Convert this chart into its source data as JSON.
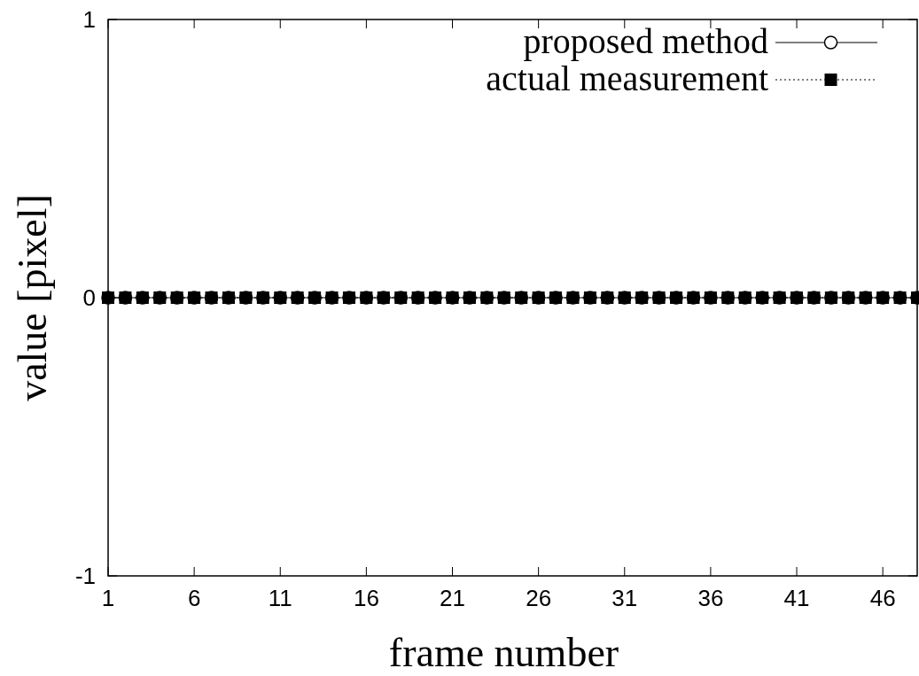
{
  "chart_data": {
    "type": "line",
    "xlabel": "frame number",
    "ylabel": "value [pixel]",
    "x": [
      1,
      2,
      3,
      4,
      5,
      6,
      7,
      8,
      9,
      10,
      11,
      12,
      13,
      14,
      15,
      16,
      17,
      18,
      19,
      20,
      21,
      22,
      23,
      24,
      25,
      26,
      27,
      28,
      29,
      30,
      31,
      32,
      33,
      34,
      35,
      36,
      37,
      38,
      39,
      40,
      41,
      42,
      43,
      44,
      45,
      46,
      47,
      48
    ],
    "xlim": [
      1,
      48
    ],
    "xticks": [
      1,
      6,
      11,
      16,
      21,
      26,
      31,
      36,
      41,
      46
    ],
    "ylim": [
      -1,
      1
    ],
    "yticks": [
      -1,
      0,
      1
    ],
    "grid": false,
    "legend": "top right",
    "series": [
      {
        "name": "proposed method",
        "color": "#000000",
        "marker": "circle",
        "line_style": "solid",
        "values": [
          0,
          0,
          0,
          0,
          0,
          0,
          0,
          0,
          0,
          0,
          0,
          0,
          0,
          0,
          0,
          0,
          0,
          0,
          0,
          0,
          0,
          0,
          0,
          0,
          0,
          0,
          0,
          0,
          0,
          0,
          0,
          0,
          0,
          0,
          0,
          0,
          0,
          0,
          0,
          0,
          0,
          0,
          0,
          0,
          0,
          0,
          0,
          0
        ]
      },
      {
        "name": "actual measurement",
        "color": "#000000",
        "marker": "square",
        "line_style": "dotted",
        "values": [
          0,
          0,
          0,
          0,
          0,
          0,
          0,
          0,
          0,
          0,
          0,
          0,
          0,
          0,
          0,
          0,
          0,
          0,
          0,
          0,
          0,
          0,
          0,
          0,
          0,
          0,
          0,
          0,
          0,
          0,
          0,
          0,
          0,
          0,
          0,
          0,
          0,
          0,
          0,
          0,
          0,
          0,
          0,
          0,
          0,
          0,
          0,
          0
        ]
      }
    ]
  }
}
